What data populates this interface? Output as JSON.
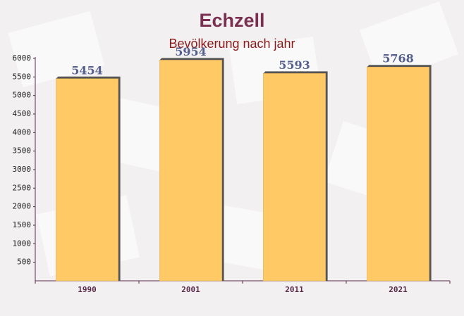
{
  "chart_data": {
    "type": "bar",
    "title": "Echzell",
    "subtitle": "Bevölkerung nach jahr",
    "categories": [
      "1990",
      "2001",
      "2011",
      "2021"
    ],
    "values": [
      5454,
      5954,
      5593,
      5768
    ],
    "color": "#ffc966",
    "ylim": [
      0,
      6000
    ],
    "yticks": [
      500,
      1000,
      1500,
      2000,
      2500,
      3000,
      3500,
      4000,
      4500,
      5000,
      5500,
      6000
    ],
    "grid": false
  }
}
